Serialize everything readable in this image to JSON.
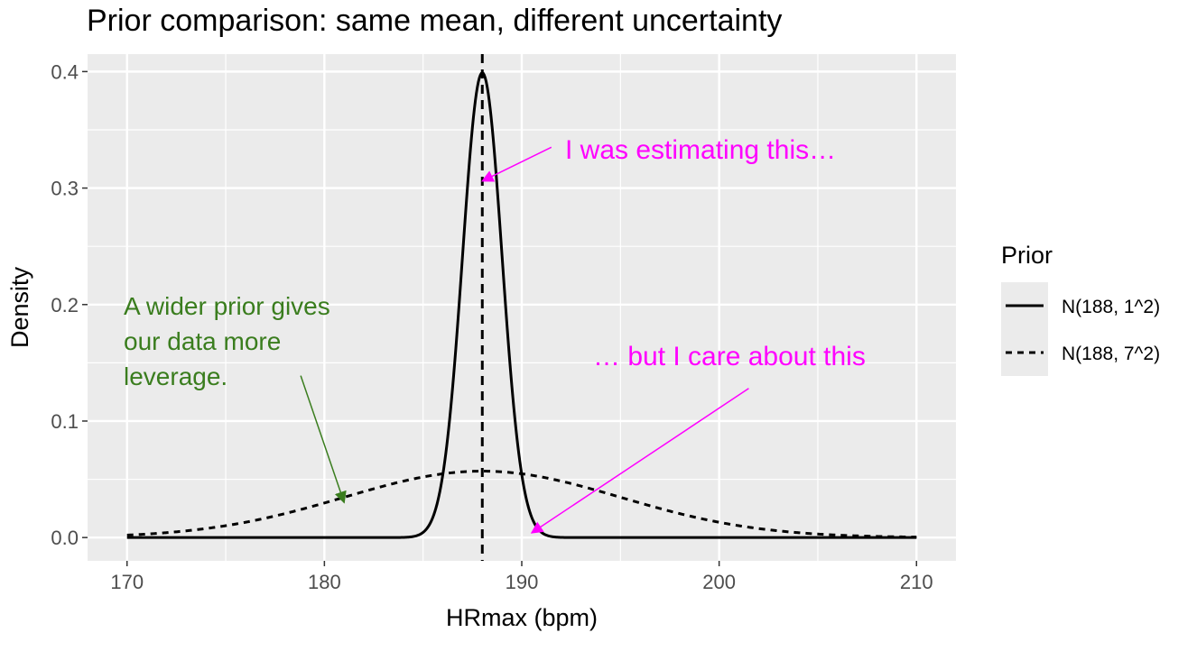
{
  "chart_data": {
    "type": "line",
    "title": "Prior comparison: same mean, different uncertainty",
    "xlabel": "HRmax (bpm)",
    "ylabel": "Density",
    "xlim": [
      168,
      212
    ],
    "ylim": [
      -0.02,
      0.415
    ],
    "x_ticks": [
      170,
      180,
      190,
      200,
      210
    ],
    "x_tick_labels": [
      "170",
      "180",
      "190",
      "200",
      "210"
    ],
    "y_ticks": [
      0.0,
      0.1,
      0.2,
      0.3,
      0.4
    ],
    "y_tick_labels": [
      "0.0",
      "0.1",
      "0.2",
      "0.3",
      "0.4"
    ],
    "x_range": [
      170,
      210
    ],
    "legend_title": "Prior",
    "legend_position": "right",
    "series": [
      {
        "name": "N(188, 1^2)",
        "distribution": "normal",
        "mean": 188,
        "sd": 1,
        "linetype": "solid",
        "color": "#000000"
      },
      {
        "name": "N(188, 7^2)",
        "distribution": "normal",
        "mean": 188,
        "sd": 7,
        "linetype": "dashed",
        "color": "#000000"
      }
    ],
    "vline": {
      "x": 188,
      "linetype": "dashed",
      "color": "#000000"
    },
    "annotations": [
      {
        "id": "wider",
        "lines": [
          "A wider prior gives",
          "our data more",
          "leverage."
        ],
        "color": "#3a7d1e",
        "arrow_from": [
          178.8,
          0.139
        ],
        "arrow_to": [
          181,
          0.03
        ]
      },
      {
        "id": "estimating",
        "lines": [
          "I was estimating this…"
        ],
        "color": "#ff00ff",
        "arrow_from": [
          191.5,
          0.335
        ],
        "arrow_to": [
          188,
          0.306
        ]
      },
      {
        "id": "care",
        "lines": [
          "… but I care about this"
        ],
        "color": "#ff00ff",
        "arrow_from": [
          201.5,
          0.128
        ],
        "arrow_to": [
          190.5,
          0.004
        ]
      }
    ]
  }
}
